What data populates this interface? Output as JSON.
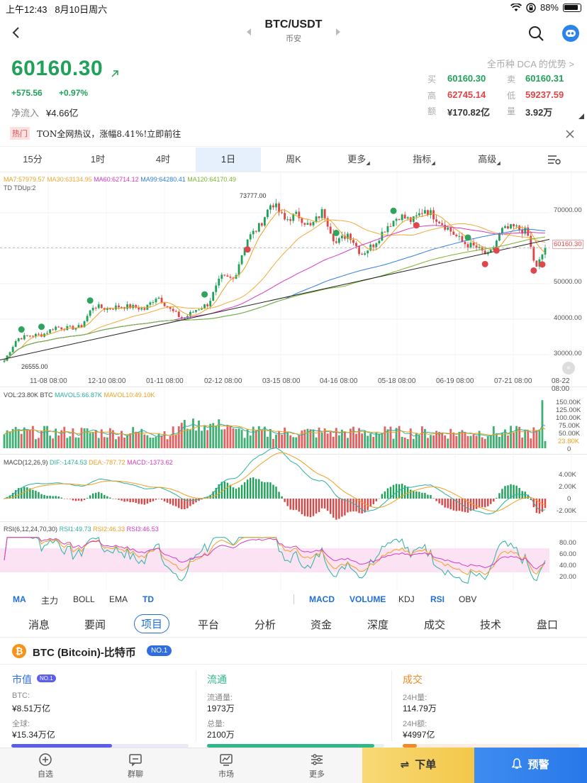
{
  "status_bar": {
    "time": "上午12:43",
    "date": "8月10日周六",
    "battery": "88%"
  },
  "header": {
    "pair": "BTC/USDT",
    "exchange": "币安"
  },
  "ticker": {
    "last_price": "60160.30",
    "change_abs": "+575.56",
    "change_pct": "+0.97%",
    "net_inflow_label": "净流入",
    "net_inflow_value": "¥4.66亿",
    "dca_link": "全币种 DCA 的优势 >",
    "buy_label": "买",
    "buy": "60160.30",
    "sell_label": "卖",
    "sell": "60160.31",
    "high_label": "高",
    "high": "62745.14",
    "low_label": "低",
    "low": "59237.59",
    "amount_label": "额",
    "amount": "¥170.82亿",
    "volume_label": "量",
    "volume": "3.92万",
    "up_color": "#1fa15a",
    "down_color": "#e04545"
  },
  "hot_banner": {
    "tag": "热门",
    "text": "TON全网热议，涨幅8.41%!立即前往"
  },
  "interval_tabs": [
    {
      "label": "15分"
    },
    {
      "label": "1时"
    },
    {
      "label": "4时"
    },
    {
      "label": "1日",
      "active": true
    },
    {
      "label": "周K"
    },
    {
      "label": "更多"
    },
    {
      "label": "指标"
    },
    {
      "label": "高级"
    }
  ],
  "chart_data": [
    {
      "type": "candlestick",
      "title": "BTC/USDT 1日",
      "ma_legend": {
        "ma7": "MA7:57979.57",
        "ma30": "MA30:63134.95",
        "ma60": "MA60:62714.12",
        "ma99": "MA99:64280.41",
        "ma120": "MA120:64170.49"
      },
      "td_legend": "TD TDUp:2",
      "max_label": "73777.00",
      "min_label": "26555.00",
      "current_price_label": "60160.30",
      "y_ticks": [
        "70000.00",
        "60000.00",
        "50000.00",
        "40000.00",
        "30000.00"
      ],
      "x_ticks": [
        "11-08 08:00",
        "12-10 08:00",
        "01-11 08:00",
        "02-12 08:00",
        "03-15 08:00",
        "04-16 08:00",
        "05-18 08:00",
        "06-19 08:00",
        "07-21 08:00",
        "08-22 08:00"
      ],
      "ylim": [
        26000,
        76000
      ],
      "close_series": [
        [
          "2023-10-18",
          28300
        ],
        [
          "2023-10-25",
          34500
        ],
        [
          "2023-11-01",
          35400
        ],
        [
          "2023-11-08",
          35600
        ],
        [
          "2023-11-15",
          37800
        ],
        [
          "2023-11-22",
          37400
        ],
        [
          "2023-11-29",
          37800
        ],
        [
          "2023-12-06",
          43800
        ],
        [
          "2023-12-13",
          42900
        ],
        [
          "2023-12-20",
          43600
        ],
        [
          "2023-12-27",
          43500
        ],
        [
          "2024-01-03",
          42800
        ],
        [
          "2024-01-10",
          46600
        ],
        [
          "2024-01-17",
          42700
        ],
        [
          "2024-01-24",
          40000
        ],
        [
          "2024-01-31",
          42600
        ],
        [
          "2024-02-07",
          44300
        ],
        [
          "2024-02-14",
          51800
        ],
        [
          "2024-02-21",
          51300
        ],
        [
          "2024-02-28",
          62400
        ],
        [
          "2024-03-06",
          66100
        ],
        [
          "2024-03-13",
          73100
        ],
        [
          "2024-03-20",
          67900
        ],
        [
          "2024-03-27",
          69500
        ],
        [
          "2024-04-03",
          65900
        ],
        [
          "2024-04-10",
          70600
        ],
        [
          "2024-04-17",
          61300
        ],
        [
          "2024-04-24",
          64300
        ],
        [
          "2024-05-01",
          58300
        ],
        [
          "2024-05-08",
          61200
        ],
        [
          "2024-05-15",
          66200
        ],
        [
          "2024-05-22",
          69200
        ],
        [
          "2024-05-29",
          67600
        ],
        [
          "2024-06-05",
          71100
        ],
        [
          "2024-06-12",
          68200
        ],
        [
          "2024-06-19",
          64900
        ],
        [
          "2024-06-26",
          61500
        ],
        [
          "2024-07-03",
          60200
        ],
        [
          "2024-07-10",
          57700
        ],
        [
          "2024-07-17",
          65000
        ],
        [
          "2024-07-24",
          65900
        ],
        [
          "2024-07-31",
          64600
        ],
        [
          "2024-08-05",
          54000
        ],
        [
          "2024-08-10",
          60160
        ]
      ]
    },
    {
      "type": "bar",
      "title": "VOL",
      "legend": {
        "vol": "VOL:23.80K BTC",
        "mavol5": "MAVOL5:66.87K",
        "mavol10": "MAVOL10:49.10K"
      },
      "y_ticks": [
        "150.00K",
        "125.00K",
        "100.00K",
        "75.00K",
        "50.00K",
        "23.80K",
        "0"
      ]
    },
    {
      "type": "line",
      "title": "MACD(12,26,9)",
      "legend": {
        "name": "MACD(12,26,9)",
        "dif": "DIF:-1474.53",
        "dea": "DEA:-787.72",
        "macd": "MACD:-1373.62"
      },
      "y_ticks": [
        "4.00K",
        "2.00K",
        "0",
        "-2.00K"
      ]
    },
    {
      "type": "line",
      "title": "RSI(6,12,24,70,30)",
      "legend": {
        "name": "RSI(6,12,24,70,30)",
        "rsi1": "RSI1:49.73",
        "rsi2": "RSI2:46.33",
        "rsi3": "RSI3:46.53"
      },
      "y_ticks": [
        "80.00",
        "60.00",
        "40.00",
        "20.00"
      ]
    }
  ],
  "indicator_bar": {
    "main": [
      {
        "label": "MA",
        "on": true
      },
      {
        "label": "主力"
      },
      {
        "label": "BOLL"
      },
      {
        "label": "EMA"
      },
      {
        "label": "TD",
        "on": true
      }
    ],
    "sub": [
      {
        "label": "MACD",
        "on": true
      },
      {
        "label": "VOLUME",
        "on": true
      },
      {
        "label": "KDJ"
      },
      {
        "label": "RSI",
        "on": true
      },
      {
        "label": "OBV"
      }
    ]
  },
  "section_tabs": [
    "消息",
    "要闻",
    "项目",
    "平台",
    "分析",
    "资金",
    "深度",
    "成交",
    "技术",
    "盘口"
  ],
  "section_active": "项目",
  "project": {
    "title": "BTC (Bitcoin)-比特币",
    "rank_badge": "NO.1",
    "market_cap": {
      "header": "市值",
      "badge": "NO.1",
      "l1": "BTC:",
      "v1": "¥8.51万亿",
      "l2": "全球:",
      "v2": "¥15.34万亿",
      "bar_color": "#5a5ee8"
    },
    "circulation": {
      "header": "流通",
      "l1": "流通量:",
      "v1": "1973万",
      "l2": "总量:",
      "v2": "2100万",
      "bar_color": "#2fb98a"
    },
    "trade": {
      "header": "成交",
      "l1": "24H量:",
      "v1": "114.79万",
      "l2": "24H额:",
      "v2": "¥4997亿",
      "bar_color": "#f08a28"
    }
  },
  "bottom_nav": {
    "items": [
      {
        "label": "自选"
      },
      {
        "label": "群聊"
      },
      {
        "label": "市场"
      },
      {
        "label": "更多"
      }
    ],
    "order_label": "下单",
    "alert_label": "预警"
  }
}
